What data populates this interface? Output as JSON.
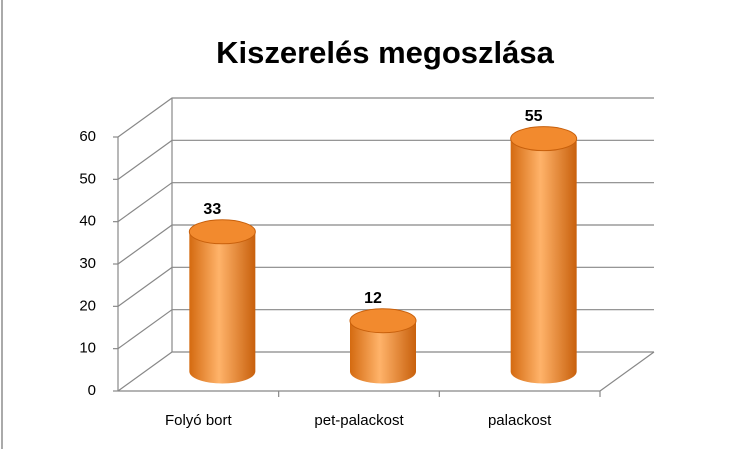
{
  "chart_data": {
    "type": "bar",
    "title": "Kiszerelés megoszlása",
    "categories": [
      "Folyó bort",
      "pet-palackost",
      "palackost"
    ],
    "values": [
      33,
      12,
      55
    ],
    "color": "#f28a2e",
    "ylim": [
      0,
      60
    ],
    "yticks": [
      0,
      10,
      20,
      30,
      40,
      50,
      60
    ],
    "grid": true
  }
}
